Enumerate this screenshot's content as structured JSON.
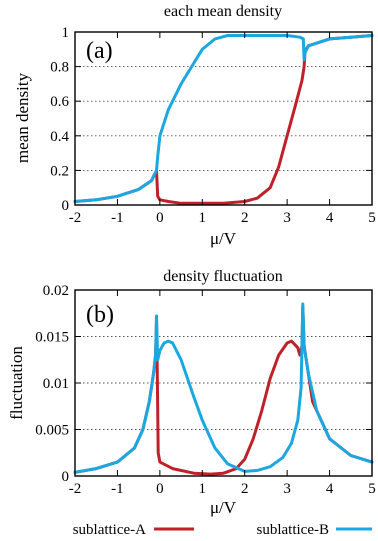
{
  "colors": {
    "sublattice_a": "#c0202a",
    "sublattice_b": "#1ba7e0"
  },
  "legend": {
    "entries": [
      "sublattice-A",
      "sublattice-B"
    ],
    "placement": "bottom"
  },
  "chart_data": [
    {
      "type": "line",
      "panel_label": "(a)",
      "title": "each mean density",
      "xlabel": "μ/V",
      "ylabel": "mean density",
      "xlim": [
        -2,
        5
      ],
      "ylim": [
        0,
        1
      ],
      "xticks": [
        "-2",
        "-1",
        "0",
        "1",
        "2",
        "3",
        "4",
        "5"
      ],
      "yticks": [
        "0",
        "0.2",
        "0.4",
        "0.6",
        "0.8",
        "1"
      ],
      "grid": "horizontal dotted",
      "series": [
        {
          "name": "sublattice-A",
          "x": [
            -2,
            -1.5,
            -1,
            -0.5,
            -0.2,
            -0.08,
            -0.05,
            0.0,
            0.2,
            0.5,
            1.0,
            1.5,
            2.0,
            2.3,
            2.6,
            2.8,
            3.0,
            3.2,
            3.35,
            3.4,
            3.42,
            3.5,
            4.0,
            4.5,
            5.0
          ],
          "y": [
            0.02,
            0.03,
            0.05,
            0.09,
            0.14,
            0.2,
            0.05,
            0.03,
            0.02,
            0.01,
            0.01,
            0.01,
            0.02,
            0.04,
            0.1,
            0.22,
            0.4,
            0.58,
            0.72,
            0.8,
            0.89,
            0.92,
            0.96,
            0.97,
            0.98
          ]
        },
        {
          "name": "sublattice-B",
          "x": [
            -2,
            -1.5,
            -1,
            -0.5,
            -0.2,
            -0.08,
            -0.05,
            0.0,
            0.2,
            0.5,
            1.0,
            1.3,
            1.6,
            2.0,
            2.5,
            3.0,
            3.3,
            3.38,
            3.4,
            3.42,
            3.5,
            4.0,
            4.5,
            5.0
          ],
          "y": [
            0.02,
            0.03,
            0.05,
            0.09,
            0.14,
            0.2,
            0.28,
            0.4,
            0.55,
            0.7,
            0.9,
            0.96,
            0.98,
            0.98,
            0.98,
            0.98,
            0.97,
            0.96,
            0.84,
            0.88,
            0.92,
            0.96,
            0.97,
            0.98
          ]
        }
      ]
    },
    {
      "type": "line",
      "panel_label": "(b)",
      "title": "density fluctuation",
      "xlabel": "μ/V",
      "ylabel": "fluctuation",
      "xlim": [
        -2,
        5
      ],
      "ylim": [
        0,
        0.02
      ],
      "xticks": [
        "-2",
        "-1",
        "0",
        "1",
        "2",
        "3",
        "4",
        "5"
      ],
      "yticks": [
        "0",
        "0.005",
        "0.01",
        "0.015",
        "0.02"
      ],
      "grid": "horizontal dotted",
      "series": [
        {
          "name": "sublattice-A",
          "x": [
            -2,
            -1.5,
            -1,
            -0.6,
            -0.4,
            -0.25,
            -0.15,
            -0.1,
            -0.08,
            -0.06,
            -0.04,
            0.0,
            0.3,
            0.8,
            1.2,
            1.5,
            1.8,
            2.0,
            2.2,
            2.4,
            2.6,
            2.8,
            3.0,
            3.1,
            3.25,
            3.3,
            3.35,
            3.37,
            3.4,
            3.6,
            4.0,
            4.5,
            5.0
          ],
          "y": [
            0.0004,
            0.0008,
            0.0015,
            0.003,
            0.005,
            0.008,
            0.011,
            0.013,
            0.0168,
            0.011,
            0.0025,
            0.0015,
            0.0008,
            0.0003,
            0.0002,
            0.0003,
            0.0008,
            0.0018,
            0.004,
            0.007,
            0.0105,
            0.013,
            0.0143,
            0.0145,
            0.0138,
            0.013,
            0.014,
            0.0182,
            0.014,
            0.008,
            0.004,
            0.0022,
            0.0015
          ]
        },
        {
          "name": "sublattice-B",
          "x": [
            -2,
            -1.5,
            -1,
            -0.6,
            -0.4,
            -0.25,
            -0.15,
            -0.1,
            -0.08,
            -0.05,
            0.0,
            0.1,
            0.2,
            0.3,
            0.5,
            0.8,
            1.0,
            1.3,
            1.6,
            2.0,
            2.3,
            2.6,
            2.9,
            3.1,
            3.25,
            3.33,
            3.37,
            3.4,
            3.5,
            3.7,
            4.0,
            4.5,
            5.0
          ],
          "y": [
            0.0004,
            0.0008,
            0.0015,
            0.003,
            0.005,
            0.008,
            0.011,
            0.013,
            0.0172,
            0.0125,
            0.0135,
            0.0143,
            0.0145,
            0.0143,
            0.0125,
            0.0085,
            0.006,
            0.003,
            0.0013,
            0.0005,
            0.0006,
            0.001,
            0.002,
            0.0035,
            0.006,
            0.0095,
            0.0185,
            0.014,
            0.011,
            0.007,
            0.004,
            0.0022,
            0.0015
          ]
        }
      ]
    }
  ]
}
